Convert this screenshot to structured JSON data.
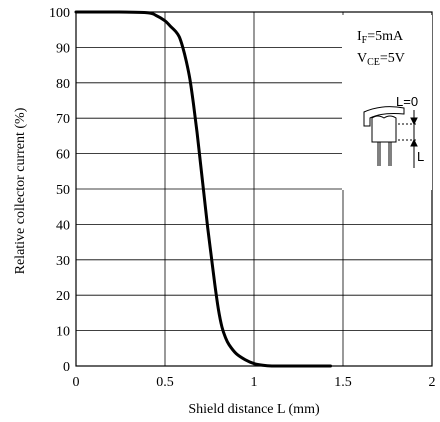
{
  "chart_data": {
    "type": "line",
    "xlabel": "Shield distance L (mm)",
    "ylabel": "Relative collector current (%)",
    "xlim": [
      0,
      2
    ],
    "ylim": [
      0,
      100
    ],
    "x_ticks": [
      "0",
      "0.5",
      "1",
      "1.5",
      "2"
    ],
    "y_ticks": [
      "0",
      "10",
      "20",
      "30",
      "40",
      "50",
      "60",
      "70",
      "80",
      "90",
      "100"
    ],
    "grid": true,
    "conditions": {
      "if_main": "I",
      "if_sub": "F",
      "if_rest": "=5mA",
      "vce_main": "V",
      "vce_sub": "CE",
      "vce_rest": "=5V"
    },
    "diagram_labels": {
      "l_zero": "L=0",
      "l": "L"
    },
    "series": [
      {
        "x": [
          0,
          0.2,
          0.4,
          0.45,
          0.5,
          0.53,
          0.56,
          0.58,
          0.6,
          0.62,
          0.64,
          0.66,
          0.68,
          0.7,
          0.72,
          0.74,
          0.76,
          0.78,
          0.8,
          0.82,
          0.84,
          0.86,
          0.9,
          0.95,
          1.0,
          1.05,
          1.1,
          1.2,
          1.43
        ],
        "y": [
          100,
          100,
          99.8,
          99,
          97.5,
          96,
          94.5,
          93,
          90,
          86,
          81,
          74,
          66,
          57,
          48,
          39,
          31,
          23,
          16,
          11,
          8,
          6,
          3.5,
          1.8,
          0.7,
          0.2,
          0,
          0,
          0
        ]
      }
    ]
  }
}
